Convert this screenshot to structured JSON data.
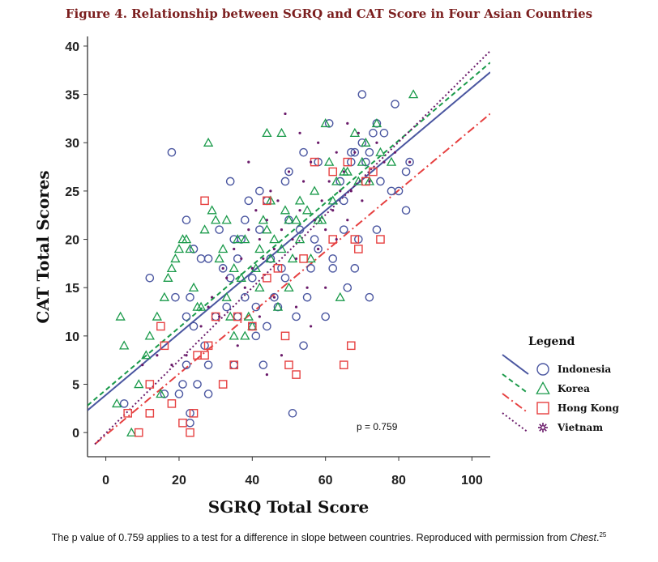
{
  "figure_title": "Figure 4. Relationship between SGRQ and CAT Score in Four Asian Countries",
  "caption": {
    "text": "The p value of 0.759 applies to a test for a difference in slope between countries. Reproduced with permission from ",
    "source": "Chest",
    "period": ".",
    "ref": "25"
  },
  "chart_data": {
    "type": "scatter",
    "xlabel": "SGRQ Total Score",
    "ylabel": "CAT Total Scores",
    "xlim": [
      -5,
      105
    ],
    "ylim": [
      -2.5,
      41
    ],
    "xticks": [
      0,
      20,
      40,
      60,
      80,
      100
    ],
    "yticks": [
      0,
      5,
      10,
      15,
      20,
      25,
      30,
      35,
      40
    ],
    "grid": false,
    "legend_title": "Legend",
    "legend_placement": "right",
    "annotation": "p = 0.759",
    "series": [
      {
        "name": "Indonesia",
        "marker": "circle",
        "color": "#4a56a0",
        "line_style": "solid",
        "fit": [
          [
            -5,
            2.3
          ],
          [
            105,
            37.3
          ]
        ],
        "points": [
          [
            5,
            3
          ],
          [
            12,
            16
          ],
          [
            16,
            4
          ],
          [
            18,
            29
          ],
          [
            19,
            14
          ],
          [
            20,
            4
          ],
          [
            21,
            5
          ],
          [
            22,
            7
          ],
          [
            22,
            12
          ],
          [
            22,
            22
          ],
          [
            23,
            14
          ],
          [
            23,
            2
          ],
          [
            23,
            1
          ],
          [
            24,
            11
          ],
          [
            24,
            19
          ],
          [
            25,
            5
          ],
          [
            26,
            18
          ],
          [
            27,
            9
          ],
          [
            28,
            4
          ],
          [
            28,
            18
          ],
          [
            28,
            7
          ],
          [
            30,
            12
          ],
          [
            31,
            21
          ],
          [
            32,
            17
          ],
          [
            33,
            13
          ],
          [
            34,
            26
          ],
          [
            34,
            16
          ],
          [
            35,
            7
          ],
          [
            35,
            20
          ],
          [
            36,
            12
          ],
          [
            36,
            18
          ],
          [
            37,
            20
          ],
          [
            38,
            22
          ],
          [
            38,
            14
          ],
          [
            39,
            24
          ],
          [
            40,
            16
          ],
          [
            40,
            11
          ],
          [
            41,
            10
          ],
          [
            41,
            13
          ],
          [
            42,
            25
          ],
          [
            42,
            21
          ],
          [
            43,
            7
          ],
          [
            44,
            24
          ],
          [
            44,
            11
          ],
          [
            45,
            18
          ],
          [
            46,
            14
          ],
          [
            47,
            13
          ],
          [
            48,
            17
          ],
          [
            49,
            26
          ],
          [
            49,
            16
          ],
          [
            50,
            27
          ],
          [
            50,
            22
          ],
          [
            51,
            2
          ],
          [
            52,
            12
          ],
          [
            53,
            21
          ],
          [
            54,
            29
          ],
          [
            54,
            9
          ],
          [
            55,
            14
          ],
          [
            56,
            17
          ],
          [
            57,
            20
          ],
          [
            58,
            28
          ],
          [
            58,
            19
          ],
          [
            60,
            12
          ],
          [
            61,
            32
          ],
          [
            62,
            17
          ],
          [
            62,
            18
          ],
          [
            64,
            26
          ],
          [
            65,
            24
          ],
          [
            65,
            21
          ],
          [
            66,
            15
          ],
          [
            67,
            28
          ],
          [
            67,
            29
          ],
          [
            68,
            29
          ],
          [
            68,
            17
          ],
          [
            69,
            20
          ],
          [
            70,
            30
          ],
          [
            70,
            35
          ],
          [
            71,
            28
          ],
          [
            72,
            29
          ],
          [
            72,
            14
          ],
          [
            73,
            31
          ],
          [
            74,
            21
          ],
          [
            74,
            32
          ],
          [
            75,
            26
          ],
          [
            76,
            31
          ],
          [
            78,
            25
          ],
          [
            79,
            34
          ],
          [
            80,
            25
          ],
          [
            82,
            27
          ],
          [
            82,
            23
          ],
          [
            83,
            28
          ]
        ]
      },
      {
        "name": "Korea",
        "marker": "triangle",
        "color": "#1a9a4a",
        "line_style": "dashed",
        "fit": [
          [
            -5,
            2.8
          ],
          [
            105,
            38.3
          ]
        ],
        "points": [
          [
            3,
            3
          ],
          [
            4,
            12
          ],
          [
            5,
            9
          ],
          [
            7,
            0
          ],
          [
            9,
            5
          ],
          [
            11,
            8
          ],
          [
            12,
            10
          ],
          [
            14,
            12
          ],
          [
            15,
            4
          ],
          [
            16,
            14
          ],
          [
            17,
            16
          ],
          [
            18,
            17
          ],
          [
            19,
            18
          ],
          [
            20,
            19
          ],
          [
            21,
            20
          ],
          [
            22,
            20
          ],
          [
            23,
            19
          ],
          [
            24,
            15
          ],
          [
            25,
            13
          ],
          [
            26,
            13
          ],
          [
            27,
            21
          ],
          [
            28,
            30
          ],
          [
            29,
            23
          ],
          [
            30,
            22
          ],
          [
            31,
            18
          ],
          [
            32,
            19
          ],
          [
            33,
            14
          ],
          [
            34,
            12
          ],
          [
            35,
            17
          ],
          [
            36,
            20
          ],
          [
            37,
            16
          ],
          [
            38,
            10
          ],
          [
            39,
            12
          ],
          [
            40,
            11
          ],
          [
            41,
            17
          ],
          [
            42,
            19
          ],
          [
            43,
            22
          ],
          [
            44,
            31
          ],
          [
            45,
            24
          ],
          [
            46,
            20
          ],
          [
            47,
            13
          ],
          [
            48,
            31
          ],
          [
            49,
            23
          ],
          [
            50,
            15
          ],
          [
            51,
            18
          ],
          [
            52,
            22
          ],
          [
            53,
            20
          ],
          [
            55,
            23
          ],
          [
            56,
            18
          ],
          [
            58,
            22
          ],
          [
            60,
            32
          ],
          [
            62,
            24
          ],
          [
            63,
            26
          ],
          [
            64,
            14
          ],
          [
            66,
            27
          ],
          [
            68,
            31
          ],
          [
            69,
            26
          ],
          [
            70,
            28
          ],
          [
            71,
            30
          ],
          [
            72,
            26
          ],
          [
            74,
            32
          ],
          [
            75,
            29
          ],
          [
            78,
            28
          ],
          [
            84,
            35
          ],
          [
            45,
            18
          ],
          [
            50,
            22
          ],
          [
            38,
            20
          ],
          [
            44,
            21
          ],
          [
            57,
            25
          ],
          [
            61,
            28
          ],
          [
            65,
            27
          ],
          [
            33,
            22
          ],
          [
            35,
            10
          ],
          [
            42,
            15
          ],
          [
            48,
            19
          ],
          [
            53,
            24
          ],
          [
            59,
            22
          ]
        ]
      },
      {
        "name": "Hong Kong",
        "marker": "square",
        "color": "#e64040",
        "line_style": "dashdot",
        "fit": [
          [
            -3,
            -1.2
          ],
          [
            105,
            33
          ]
        ],
        "points": [
          [
            6,
            2
          ],
          [
            9,
            0
          ],
          [
            12,
            2
          ],
          [
            12,
            5
          ],
          [
            15,
            11
          ],
          [
            16,
            9
          ],
          [
            18,
            3
          ],
          [
            21,
            1
          ],
          [
            23,
            0
          ],
          [
            24,
            2
          ],
          [
            25,
            8
          ],
          [
            27,
            24
          ],
          [
            27,
            8
          ],
          [
            28,
            9
          ],
          [
            30,
            12
          ],
          [
            32,
            5
          ],
          [
            35,
            7
          ],
          [
            36,
            12
          ],
          [
            40,
            11
          ],
          [
            44,
            16
          ],
          [
            44,
            24
          ],
          [
            47,
            17
          ],
          [
            49,
            10
          ],
          [
            50,
            7
          ],
          [
            52,
            6
          ],
          [
            54,
            18
          ],
          [
            57,
            28
          ],
          [
            62,
            20
          ],
          [
            62,
            27
          ],
          [
            65,
            7
          ],
          [
            66,
            28
          ],
          [
            67,
            9
          ],
          [
            68,
            20
          ],
          [
            69,
            19
          ],
          [
            71,
            26
          ],
          [
            73,
            27
          ],
          [
            75,
            20
          ]
        ]
      },
      {
        "name": "Vietnam",
        "marker": "star",
        "color": "#6a1a6a",
        "line_style": "dotted",
        "fit": [
          [
            -3,
            -1.2
          ],
          [
            105,
            39.5
          ]
        ],
        "points": [
          [
            10,
            7
          ],
          [
            14,
            8
          ],
          [
            18,
            7
          ],
          [
            22,
            8
          ],
          [
            26,
            11
          ],
          [
            29,
            14
          ],
          [
            31,
            12
          ],
          [
            33,
            16
          ],
          [
            35,
            19
          ],
          [
            37,
            18
          ],
          [
            38,
            15
          ],
          [
            39,
            21
          ],
          [
            40,
            17
          ],
          [
            41,
            23
          ],
          [
            42,
            20
          ],
          [
            43,
            18
          ],
          [
            44,
            22
          ],
          [
            45,
            25
          ],
          [
            46,
            19
          ],
          [
            47,
            24
          ],
          [
            48,
            21
          ],
          [
            49,
            33
          ],
          [
            50,
            27
          ],
          [
            51,
            20
          ],
          [
            52,
            18
          ],
          [
            53,
            23
          ],
          [
            54,
            26
          ],
          [
            55,
            15
          ],
          [
            56,
            28
          ],
          [
            57,
            22
          ],
          [
            58,
            19
          ],
          [
            59,
            24
          ],
          [
            60,
            21
          ],
          [
            61,
            26
          ],
          [
            62,
            23
          ],
          [
            63,
            20
          ],
          [
            64,
            25
          ],
          [
            65,
            27
          ],
          [
            66,
            22
          ],
          [
            67,
            25
          ],
          [
            68,
            29
          ],
          [
            69,
            31
          ],
          [
            70,
            24
          ],
          [
            72,
            26
          ],
          [
            74,
            30
          ],
          [
            76,
            28
          ],
          [
            79,
            29
          ],
          [
            83,
            28
          ],
          [
            36,
            9
          ],
          [
            42,
            12
          ],
          [
            46,
            14
          ],
          [
            52,
            13
          ],
          [
            56,
            11
          ],
          [
            60,
            15
          ],
          [
            48,
            8
          ],
          [
            44,
            6
          ],
          [
            32,
            17
          ],
          [
            28,
            13
          ],
          [
            39,
            28
          ],
          [
            53,
            31
          ],
          [
            58,
            30
          ],
          [
            63,
            29
          ],
          [
            66,
            32
          ]
        ]
      }
    ]
  }
}
